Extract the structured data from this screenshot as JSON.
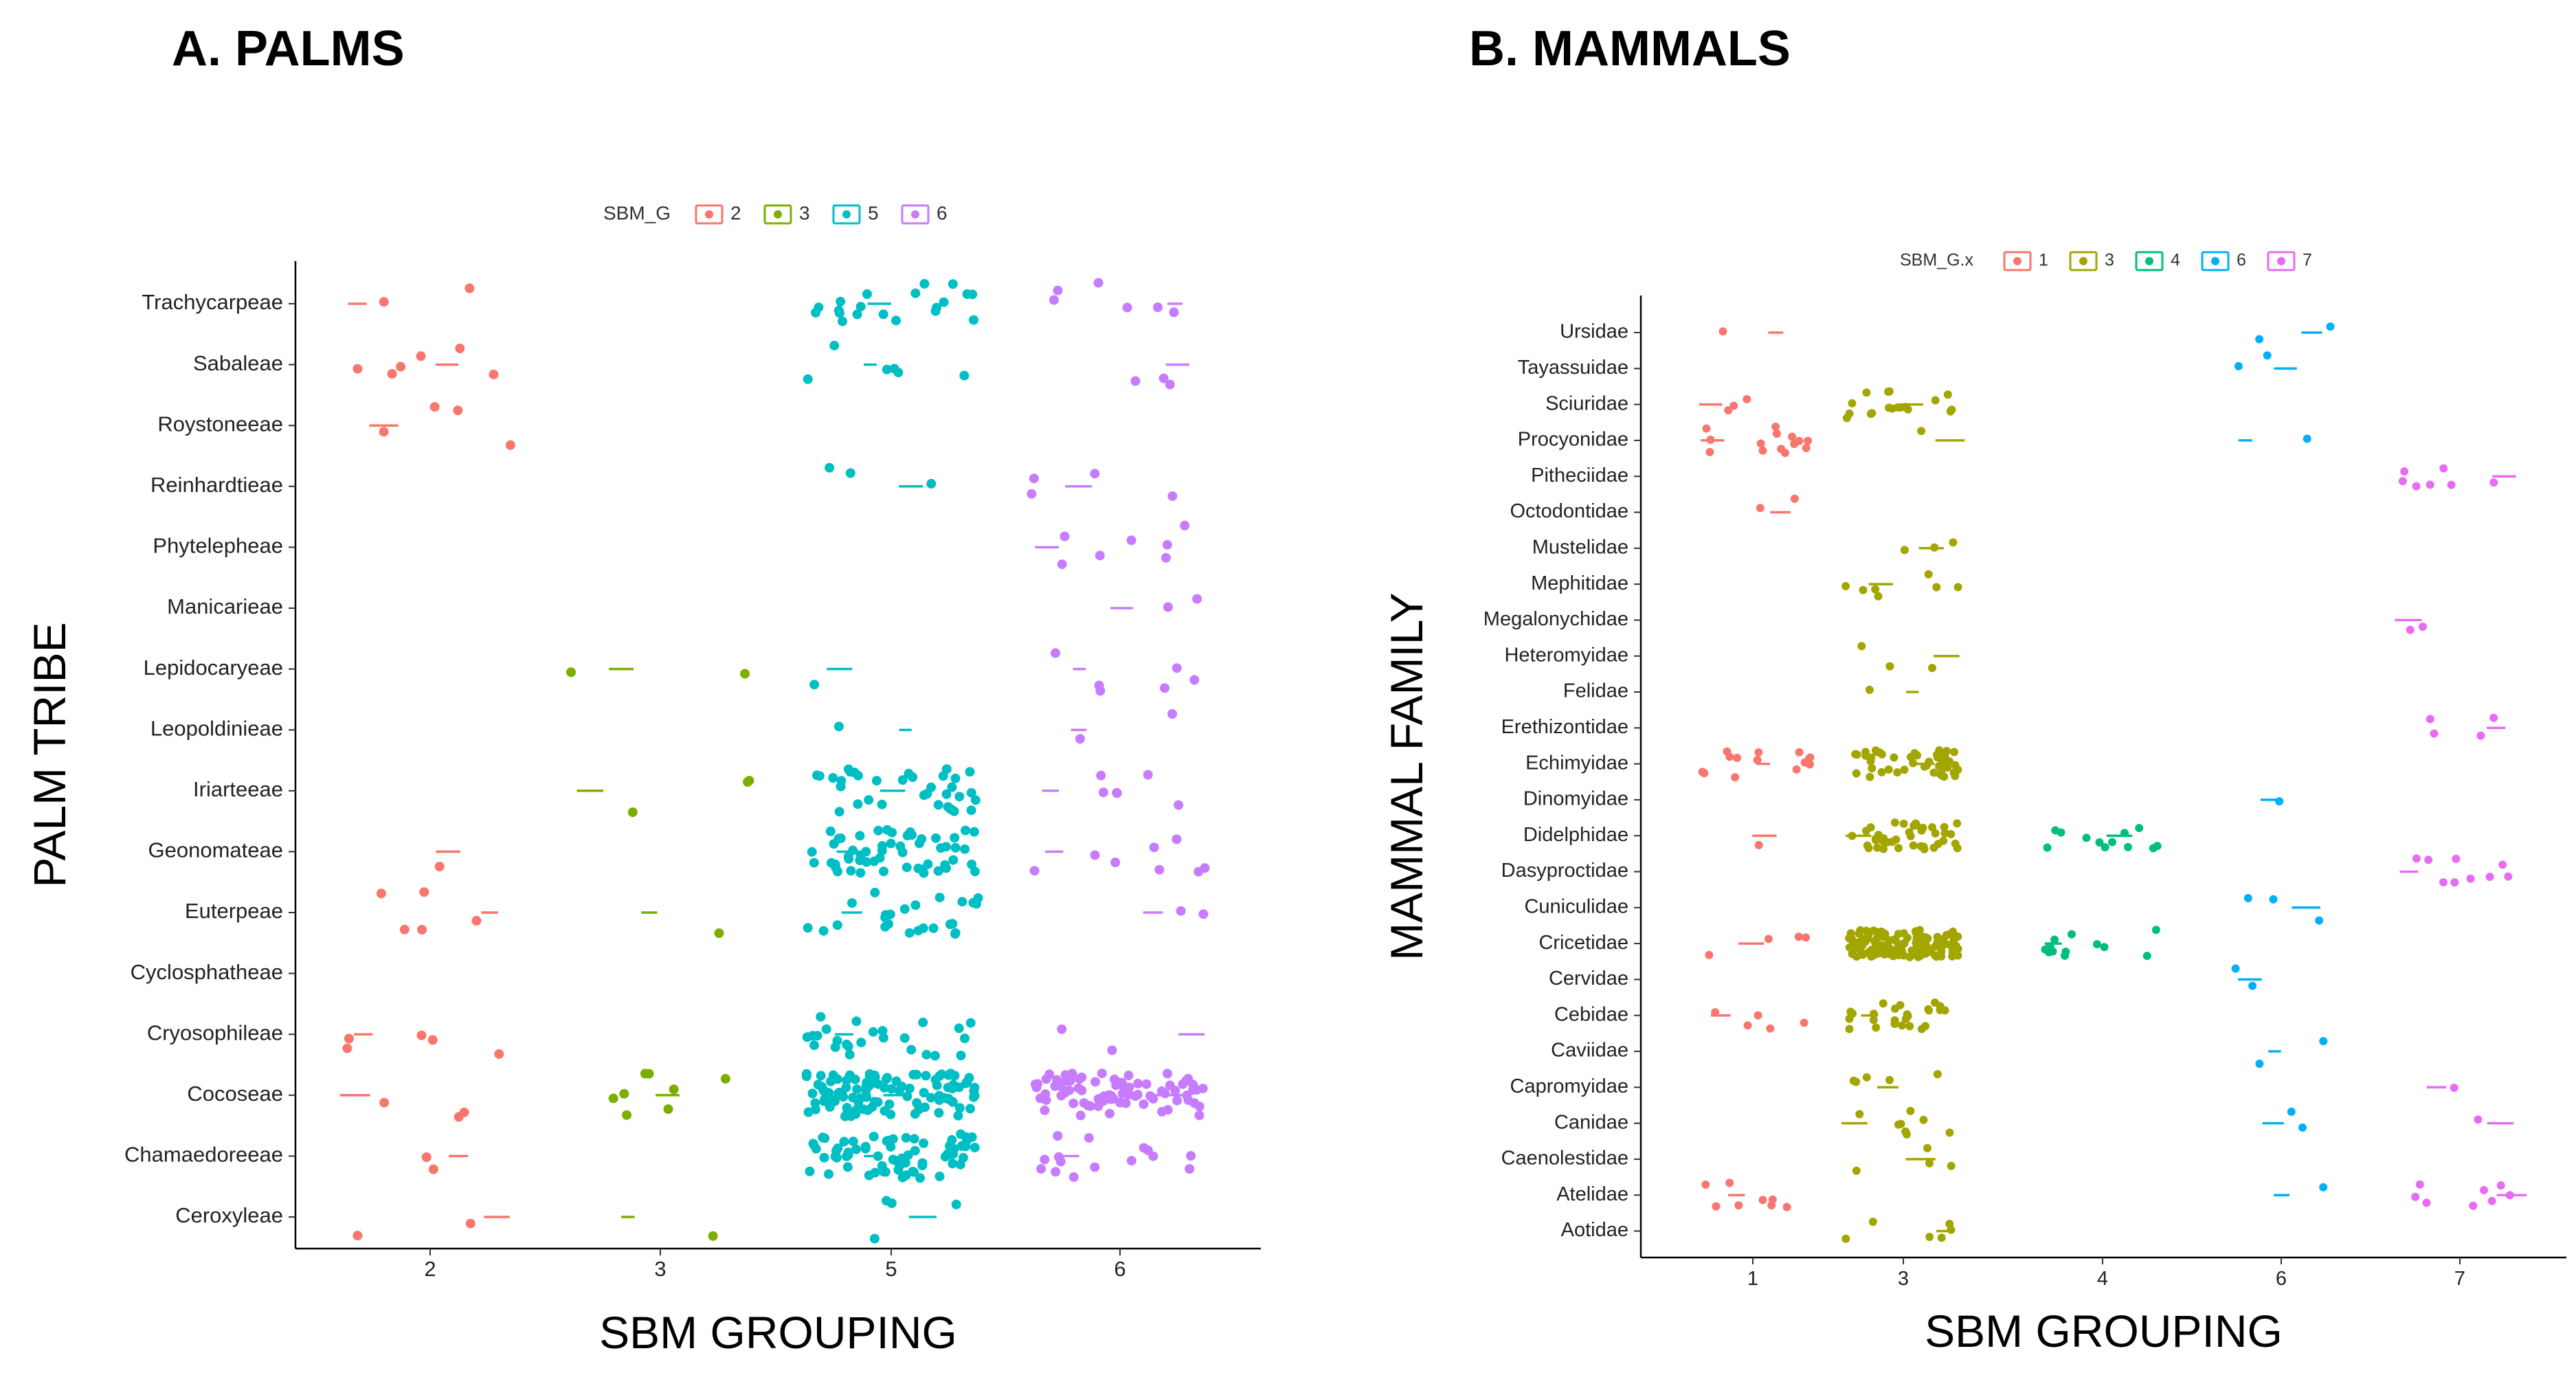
{
  "chart_data": [
    {
      "type": "scatter",
      "title": "A. PALMS",
      "xlabel": "SBM GROUPING",
      "ylabel": "PALM TRIBE",
      "x_categories": [
        "2",
        "3",
        "5",
        "6"
      ],
      "y_categories": [
        "Trachycarpeae",
        "Sabaleae",
        "Roystoneeae",
        "Reinhardtieae",
        "Phytelepheae",
        "Manicarieae",
        "Lepidocaryeae",
        "Leopoldinieae",
        "Iriarteeae",
        "Geonomateae",
        "Euterpeae",
        "Cyclosphatheae",
        "Cryosophileae",
        "Cocoseae",
        "Chamaedoreeae",
        "Ceroxyleae"
      ],
      "legend": {
        "title": "SBM_G",
        "position": "top",
        "entries": [
          {
            "label": "2",
            "color": "#F8766D"
          },
          {
            "label": "3",
            "color": "#7CAE00"
          },
          {
            "label": "5",
            "color": "#00BFC4"
          },
          {
            "label": "6",
            "color": "#C77CFF"
          }
        ]
      },
      "grid": false,
      "point_counts": [
        {
          "tribe": "Trachycarpeae",
          "group": "2",
          "n": 2
        },
        {
          "tribe": "Trachycarpeae",
          "group": "5",
          "n": 20
        },
        {
          "tribe": "Trachycarpeae",
          "group": "6",
          "n": 6
        },
        {
          "tribe": "Sabaleae",
          "group": "2",
          "n": 6
        },
        {
          "tribe": "Sabaleae",
          "group": "5",
          "n": 6
        },
        {
          "tribe": "Sabaleae",
          "group": "6",
          "n": 3
        },
        {
          "tribe": "Roystoneeae",
          "group": "2",
          "n": 4
        },
        {
          "tribe": "Reinhardtieae",
          "group": "5",
          "n": 3
        },
        {
          "tribe": "Reinhardtieae",
          "group": "6",
          "n": 4
        },
        {
          "tribe": "Phytelepheae",
          "group": "6",
          "n": 7
        },
        {
          "tribe": "Manicarieae",
          "group": "6",
          "n": 2
        },
        {
          "tribe": "Lepidocaryeae",
          "group": "3",
          "n": 2
        },
        {
          "tribe": "Lepidocaryeae",
          "group": "5",
          "n": 1
        },
        {
          "tribe": "Lepidocaryeae",
          "group": "6",
          "n": 6
        },
        {
          "tribe": "Leopoldinieae",
          "group": "5",
          "n": 1
        },
        {
          "tribe": "Leopoldinieae",
          "group": "6",
          "n": 2
        },
        {
          "tribe": "Iriarteeae",
          "group": "3",
          "n": 3
        },
        {
          "tribe": "Iriarteeae",
          "group": "5",
          "n": 35
        },
        {
          "tribe": "Iriarteeae",
          "group": "6",
          "n": 6
        },
        {
          "tribe": "Geonomateae",
          "group": "2",
          "n": 1
        },
        {
          "tribe": "Geonomateae",
          "group": "5",
          "n": 55
        },
        {
          "tribe": "Geonomateae",
          "group": "6",
          "n": 8
        },
        {
          "tribe": "Euterpeae",
          "group": "2",
          "n": 5
        },
        {
          "tribe": "Euterpeae",
          "group": "3",
          "n": 1
        },
        {
          "tribe": "Euterpeae",
          "group": "5",
          "n": 25
        },
        {
          "tribe": "Euterpeae",
          "group": "6",
          "n": 2
        },
        {
          "tribe": "Cryosophileae",
          "group": "2",
          "n": 5
        },
        {
          "tribe": "Cryosophileae",
          "group": "5",
          "n": 25
        },
        {
          "tribe": "Cryosophileae",
          "group": "6",
          "n": 2
        },
        {
          "tribe": "Cocoseae",
          "group": "2",
          "n": 3
        },
        {
          "tribe": "Cocoseae",
          "group": "3",
          "n": 8
        },
        {
          "tribe": "Cocoseae",
          "group": "5",
          "n": 110
        },
        {
          "tribe": "Cocoseae",
          "group": "6",
          "n": 80
        },
        {
          "tribe": "Chamaedoreeae",
          "group": "2",
          "n": 2
        },
        {
          "tribe": "Chamaedoreeae",
          "group": "5",
          "n": 70
        },
        {
          "tribe": "Chamaedoreeae",
          "group": "6",
          "n": 15
        },
        {
          "tribe": "Ceroxyleae",
          "group": "2",
          "n": 2
        },
        {
          "tribe": "Ceroxyleae",
          "group": "3",
          "n": 1
        },
        {
          "tribe": "Ceroxyleae",
          "group": "5",
          "n": 4
        }
      ]
    },
    {
      "type": "scatter",
      "title": "B. MAMMALS",
      "xlabel": "SBM GROUPING",
      "ylabel": "MAMMAL FAMILY",
      "x_categories": [
        "1",
        "3",
        "4",
        "6",
        "7"
      ],
      "y_categories": [
        "Ursidae",
        "Tayassuidae",
        "Sciuridae",
        "Procyonidae",
        "Pitheciidae",
        "Octodontidae",
        "Mustelidae",
        "Mephitidae",
        "Megalonychidae",
        "Heteromyidae",
        "Felidae",
        "Erethizontidae",
        "Echimyidae",
        "Dinomyidae",
        "Didelphidae",
        "Dasyproctidae",
        "Cuniculidae",
        "Cricetidae",
        "Cervidae",
        "Cebidae",
        "Caviidae",
        "Capromyidae",
        "Canidae",
        "Caenolestidae",
        "Atelidae",
        "Aotidae"
      ],
      "legend": {
        "title": "SBM_G.x",
        "position": "top",
        "entries": [
          {
            "label": "1",
            "color": "#F8766D"
          },
          {
            "label": "3",
            "color": "#A3A500"
          },
          {
            "label": "4",
            "color": "#00BF7D"
          },
          {
            "label": "6",
            "color": "#00B0F6"
          },
          {
            "label": "7",
            "color": "#E76BF3"
          }
        ]
      },
      "grid": false,
      "point_counts": [
        {
          "family": "Ursidae",
          "group": "1",
          "n": 1
        },
        {
          "family": "Ursidae",
          "group": "6",
          "n": 2
        },
        {
          "family": "Tayassuidae",
          "group": "6",
          "n": 2
        },
        {
          "family": "Sciuridae",
          "group": "1",
          "n": 3
        },
        {
          "family": "Sciuridae",
          "group": "3",
          "n": 18
        },
        {
          "family": "Procyonidae",
          "group": "1",
          "n": 14
        },
        {
          "family": "Procyonidae",
          "group": "3",
          "n": 1
        },
        {
          "family": "Procyonidae",
          "group": "6",
          "n": 1
        },
        {
          "family": "Pitheciidae",
          "group": "7",
          "n": 7
        },
        {
          "family": "Octodontidae",
          "group": "1",
          "n": 2
        },
        {
          "family": "Mustelidae",
          "group": "3",
          "n": 3
        },
        {
          "family": "Mephitidae",
          "group": "3",
          "n": 7
        },
        {
          "family": "Megalonychidae",
          "group": "7",
          "n": 2
        },
        {
          "family": "Heteromyidae",
          "group": "3",
          "n": 3
        },
        {
          "family": "Felidae",
          "group": "3",
          "n": 1
        },
        {
          "family": "Erethizontidae",
          "group": "7",
          "n": 4
        },
        {
          "family": "Echimyidae",
          "group": "1",
          "n": 14
        },
        {
          "family": "Echimyidae",
          "group": "3",
          "n": 45
        },
        {
          "family": "Dinomyidae",
          "group": "6",
          "n": 1
        },
        {
          "family": "Didelphidae",
          "group": "1",
          "n": 1
        },
        {
          "family": "Didelphidae",
          "group": "3",
          "n": 40
        },
        {
          "family": "Didelphidae",
          "group": "4",
          "n": 12
        },
        {
          "family": "Dasyproctidae",
          "group": "7",
          "n": 9
        },
        {
          "family": "Cuniculidae",
          "group": "6",
          "n": 3
        },
        {
          "family": "Cricetidae",
          "group": "1",
          "n": 4
        },
        {
          "family": "Cricetidae",
          "group": "3",
          "n": 130
        },
        {
          "family": "Cricetidae",
          "group": "4",
          "n": 12
        },
        {
          "family": "Cervidae",
          "group": "6",
          "n": 2
        },
        {
          "family": "Cebidae",
          "group": "1",
          "n": 5
        },
        {
          "family": "Cebidae",
          "group": "3",
          "n": 25
        },
        {
          "family": "Caviidae",
          "group": "6",
          "n": 2
        },
        {
          "family": "Capromyidae",
          "group": "3",
          "n": 5
        },
        {
          "family": "Capromyidae",
          "group": "7",
          "n": 1
        },
        {
          "family": "Canidae",
          "group": "3",
          "n": 8
        },
        {
          "family": "Canidae",
          "group": "6",
          "n": 2
        },
        {
          "family": "Canidae",
          "group": "7",
          "n": 1
        },
        {
          "family": "Caenolestidae",
          "group": "3",
          "n": 4
        },
        {
          "family": "Atelidae",
          "group": "1",
          "n": 8
        },
        {
          "family": "Atelidae",
          "group": "6",
          "n": 1
        },
        {
          "family": "Atelidae",
          "group": "7",
          "n": 8
        },
        {
          "family": "Aotidae",
          "group": "3",
          "n": 6
        }
      ]
    }
  ]
}
